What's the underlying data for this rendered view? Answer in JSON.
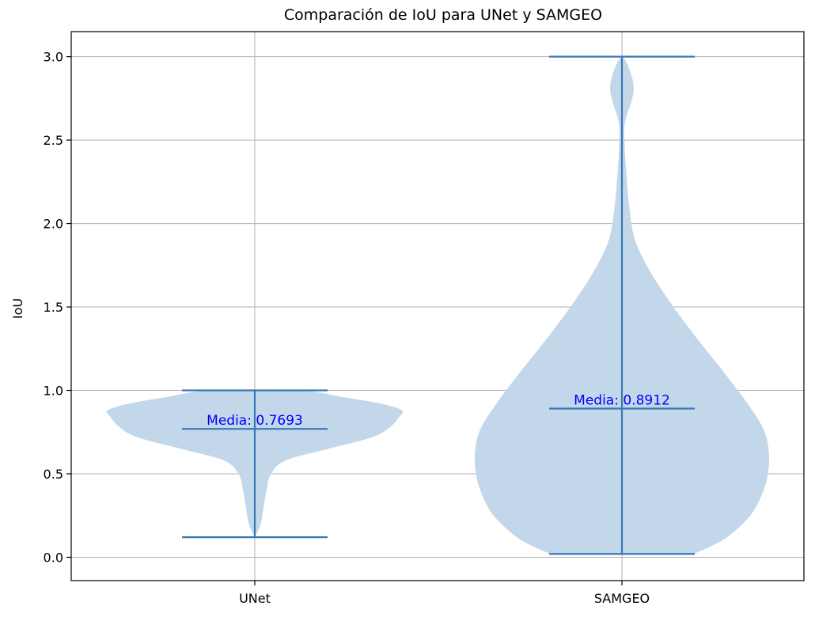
{
  "chart_data": {
    "type": "violin",
    "title": "Comparación de IoU para UNet y SAMGEO",
    "xlabel": "",
    "ylabel": "IoU",
    "categories": [
      "UNet",
      "SAMGEO"
    ],
    "ylim": [
      -0.14,
      3.15
    ],
    "yticks": [
      0.0,
      0.5,
      1.0,
      1.5,
      2.0,
      2.5,
      3.0
    ],
    "grid": true,
    "series": [
      {
        "category": "UNet",
        "min": 0.12,
        "max": 1.0,
        "mean": 0.7693,
        "annotation": "Media: 0.7693",
        "density": [
          [
            0.12,
            0.0
          ],
          [
            0.2,
            0.04
          ],
          [
            0.3,
            0.06
          ],
          [
            0.4,
            0.08
          ],
          [
            0.5,
            0.11
          ],
          [
            0.58,
            0.21
          ],
          [
            0.65,
            0.5
          ],
          [
            0.72,
            0.8
          ],
          [
            0.78,
            0.92
          ],
          [
            0.84,
            0.98
          ],
          [
            0.88,
            1.0
          ],
          [
            0.92,
            0.86
          ],
          [
            0.96,
            0.6
          ],
          [
            1.0,
            0.3
          ]
        ]
      },
      {
        "category": "SAMGEO",
        "min": 0.02,
        "max": 3.0,
        "mean": 0.8912,
        "annotation": "Media: 0.8912",
        "density": [
          [
            0.02,
            0.49
          ],
          [
            0.1,
            0.68
          ],
          [
            0.2,
            0.82
          ],
          [
            0.3,
            0.91
          ],
          [
            0.45,
            0.98
          ],
          [
            0.6,
            1.0
          ],
          [
            0.75,
            0.97
          ],
          [
            0.9,
            0.87
          ],
          [
            1.1,
            0.7
          ],
          [
            1.3,
            0.52
          ],
          [
            1.5,
            0.35
          ],
          [
            1.7,
            0.2
          ],
          [
            1.9,
            0.09
          ],
          [
            2.1,
            0.05
          ],
          [
            2.3,
            0.03
          ],
          [
            2.45,
            0.02
          ],
          [
            2.6,
            0.02
          ],
          [
            2.8,
            0.08
          ],
          [
            2.95,
            0.04
          ],
          [
            3.0,
            0.0
          ]
        ]
      }
    ],
    "colors": {
      "body": "#c3d7ea",
      "lines": "#3a78b5",
      "annotation": "#0000ff"
    }
  }
}
